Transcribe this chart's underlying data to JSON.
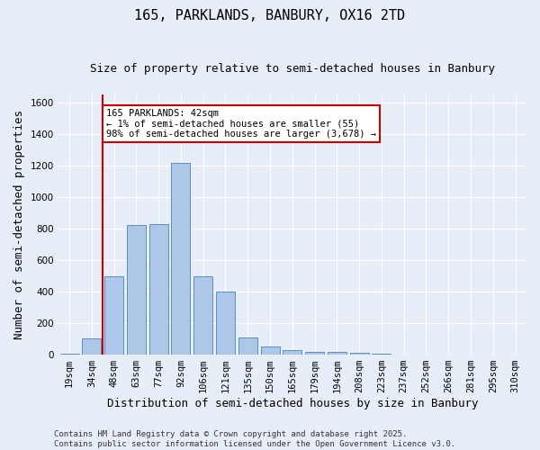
{
  "title": "165, PARKLANDS, BANBURY, OX16 2TD",
  "subtitle": "Size of property relative to semi-detached houses in Banbury",
  "xlabel": "Distribution of semi-detached houses by size in Banbury",
  "ylabel": "Number of semi-detached properties",
  "categories": [
    "19sqm",
    "34sqm",
    "48sqm",
    "63sqm",
    "77sqm",
    "92sqm",
    "106sqm",
    "121sqm",
    "135sqm",
    "150sqm",
    "165sqm",
    "179sqm",
    "194sqm",
    "208sqm",
    "223sqm",
    "237sqm",
    "252sqm",
    "266sqm",
    "281sqm",
    "295sqm",
    "310sqm"
  ],
  "values": [
    5,
    105,
    495,
    825,
    830,
    1215,
    495,
    400,
    110,
    50,
    30,
    20,
    15,
    10,
    5,
    0,
    0,
    0,
    0,
    0,
    0
  ],
  "bar_color": "#aec6e8",
  "bar_edge_color": "#5a8fc4",
  "vline_x": 1.5,
  "vline_color": "#cc0000",
  "annotation_text": "165 PARKLANDS: 42sqm\n← 1% of semi-detached houses are smaller (55)\n98% of semi-detached houses are larger (3,678) →",
  "annotation_box_color": "#ffffff",
  "annotation_box_edge": "#cc0000",
  "ylim": [
    0,
    1650
  ],
  "yticks": [
    0,
    200,
    400,
    600,
    800,
    1000,
    1200,
    1400,
    1600
  ],
  "background_color": "#e8eef8",
  "plot_bg_color": "#e8eef8",
  "grid_color": "#ffffff",
  "footer": "Contains HM Land Registry data © Crown copyright and database right 2025.\nContains public sector information licensed under the Open Government Licence v3.0.",
  "title_fontsize": 11,
  "subtitle_fontsize": 9,
  "xlabel_fontsize": 9,
  "ylabel_fontsize": 9,
  "tick_fontsize": 7.5,
  "annotation_fontsize": 7.5,
  "footer_fontsize": 6.5
}
